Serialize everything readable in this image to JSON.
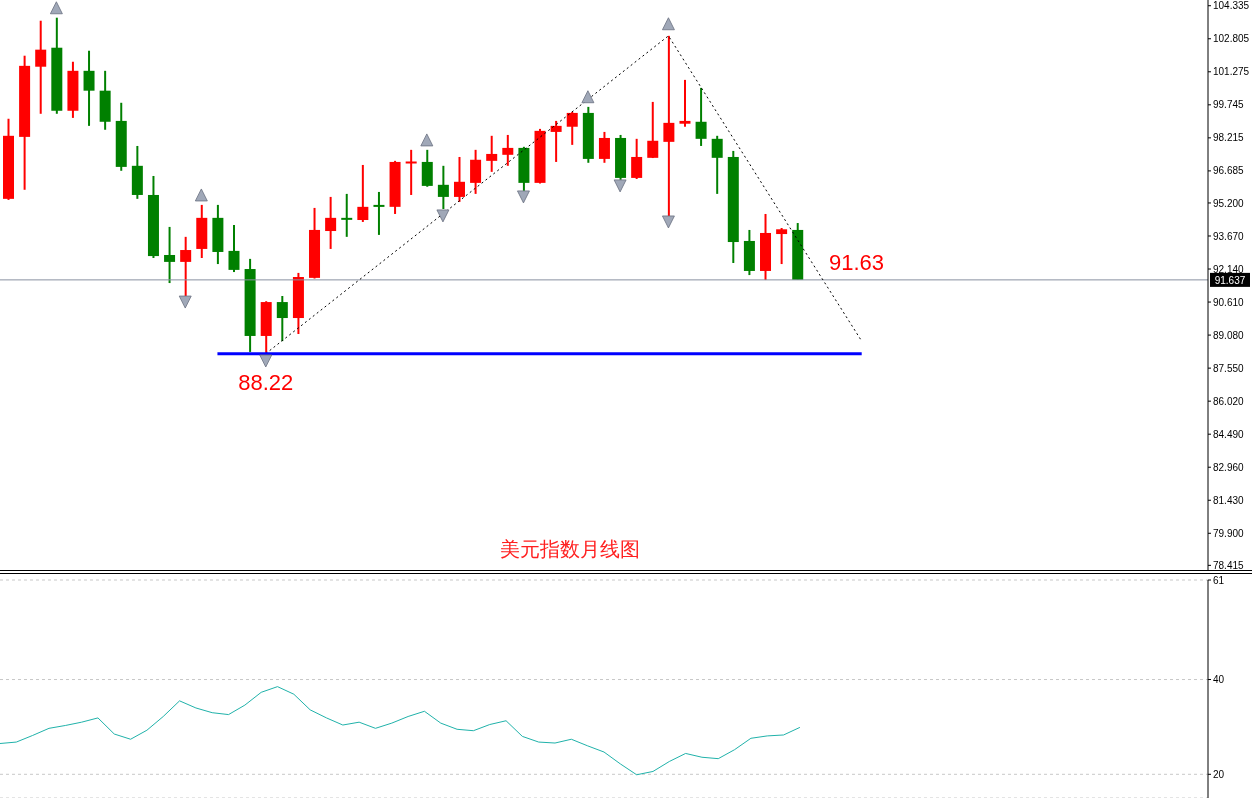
{
  "chart_data": [
    {
      "type": "candlestick",
      "title": "美元指数月线图",
      "categories": [
        null,
        null,
        null,
        null,
        null,
        null,
        null,
        null,
        null,
        null,
        null,
        null,
        null,
        null,
        null,
        null,
        null,
        null,
        null,
        null,
        null,
        null,
        null,
        null,
        null,
        null,
        null,
        null,
        null,
        null,
        null,
        null,
        null,
        null,
        null,
        null,
        null,
        null,
        null,
        null,
        null,
        null,
        null,
        null,
        null,
        null,
        null,
        null,
        null,
        null,
        null,
        null,
        null,
        null,
        null,
        null,
        null,
        null,
        null,
        null,
        null,
        null,
        null,
        null,
        null,
        null,
        null,
        null,
        null,
        null,
        null,
        null,
        null,
        null,
        null
      ],
      "ohlc": [
        [
          95.39,
          99.1,
          95.34,
          98.31
        ],
        [
          98.26,
          102.02,
          95.81,
          101.55
        ],
        [
          101.51,
          103.64,
          99.33,
          102.3
        ],
        [
          102.39,
          103.78,
          99.33,
          99.47
        ],
        [
          99.47,
          101.74,
          99.14,
          101.32
        ],
        [
          101.32,
          102.25,
          98.77,
          100.4
        ],
        [
          100.4,
          101.32,
          98.59,
          98.96
        ],
        [
          99.0,
          99.84,
          96.69,
          96.87
        ],
        [
          96.92,
          97.84,
          95.39,
          95.57
        ],
        [
          95.57,
          96.45,
          92.65,
          92.74
        ],
        [
          92.79,
          94.09,
          91.49,
          92.47
        ],
        [
          92.47,
          93.63,
          90.89,
          93.02
        ],
        [
          93.07,
          95.11,
          92.65,
          94.51
        ],
        [
          94.51,
          95.11,
          92.37,
          92.93
        ],
        [
          92.98,
          94.18,
          92.0,
          92.1
        ],
        [
          92.14,
          92.61,
          88.3,
          89.04
        ],
        [
          89.04,
          90.65,
          88.22,
          90.61
        ],
        [
          90.61,
          90.89,
          88.8,
          89.87
        ],
        [
          89.87,
          91.96,
          89.13,
          91.77
        ],
        [
          91.73,
          94.97,
          91.7,
          93.95
        ],
        [
          93.9,
          95.48,
          93.07,
          94.51
        ],
        [
          94.51,
          95.62,
          93.63,
          94.46
        ],
        [
          94.41,
          96.96,
          94.32,
          95.02
        ],
        [
          95.11,
          95.71,
          93.72,
          95.04
        ],
        [
          95.02,
          97.15,
          94.69,
          97.1
        ],
        [
          97.06,
          97.66,
          95.57,
          97.12
        ],
        [
          97.1,
          97.66,
          95.95,
          95.99
        ],
        [
          96.04,
          96.92,
          94.92,
          95.48
        ],
        [
          95.48,
          97.33,
          95.25,
          96.18
        ],
        [
          96.13,
          97.66,
          95.62,
          97.2
        ],
        [
          97.15,
          98.31,
          96.64,
          97.47
        ],
        [
          97.43,
          98.35,
          96.92,
          97.75
        ],
        [
          97.75,
          97.8,
          95.76,
          96.13
        ],
        [
          96.13,
          98.63,
          96.1,
          98.54
        ],
        [
          98.49,
          99.0,
          97.1,
          98.77
        ],
        [
          98.73,
          99.42,
          97.89,
          99.37
        ],
        [
          99.37,
          99.65,
          97.06,
          97.24
        ],
        [
          97.24,
          98.49,
          97.06,
          98.21
        ],
        [
          98.21,
          98.35,
          96.27,
          96.36
        ],
        [
          96.36,
          98.17,
          96.31,
          97.33
        ],
        [
          97.29,
          99.88,
          97.28,
          98.08
        ],
        [
          98.03,
          102.94,
          94.55,
          98.91
        ],
        [
          98.87,
          100.9,
          98.73,
          99.0
        ],
        [
          98.96,
          100.53,
          97.84,
          98.17
        ],
        [
          98.17,
          98.31,
          95.62,
          97.29
        ],
        [
          97.33,
          97.61,
          92.42,
          93.39
        ],
        [
          93.44,
          93.95,
          91.86,
          92.05
        ],
        [
          92.05,
          94.69,
          91.63,
          93.81
        ],
        [
          93.76,
          94.04,
          92.37,
          93.98
        ],
        [
          93.95,
          94.27,
          91.637,
          91.637
        ],
        null,
        null,
        null,
        null,
        null,
        null,
        null,
        null,
        null,
        null,
        null,
        null,
        null,
        null,
        null,
        null,
        null,
        null,
        null,
        null,
        null,
        null,
        null,
        null,
        null
      ],
      "colors": [
        "#ff0000",
        "#ff0000",
        "#ff0000",
        "#008000",
        "#ff0000",
        "#008000",
        "#008000",
        "#008000",
        "#008000",
        "#008000",
        "#008000",
        "#ff0000",
        "#ff0000",
        "#008000",
        "#008000",
        "#008000",
        "#ff0000",
        "#008000",
        "#ff0000",
        "#ff0000",
        "#ff0000",
        "#008000",
        "#ff0000",
        "#008000",
        "#ff0000",
        "#ff0000",
        "#008000",
        "#008000",
        "#ff0000",
        "#ff0000",
        "#ff0000",
        "#ff0000",
        "#008000",
        "#ff0000",
        "#ff0000",
        "#ff0000",
        "#008000",
        "#ff0000",
        "#008000",
        "#ff0000",
        "#ff0000",
        "#ff0000",
        "#ff0000",
        "#008000",
        "#008000",
        "#008000",
        "#008000",
        "#ff0000",
        "#ff0000",
        "#008000",
        null,
        null,
        null,
        null,
        null,
        null,
        null,
        null,
        null,
        null,
        null,
        null,
        null,
        null,
        null,
        null,
        null,
        null,
        null,
        null,
        null,
        null,
        null,
        null,
        null
      ],
      "series": [
        {
          "type": "line",
          "values": [
            null,
            null,
            null,
            null,
            null,
            null,
            null,
            null,
            null,
            null,
            null,
            null,
            null,
            null,
            null,
            null,
            88.22,
            null,
            null,
            null,
            null,
            null,
            null,
            null,
            null,
            null,
            null,
            null,
            null,
            null,
            null,
            null,
            null,
            null,
            null,
            null,
            null,
            null,
            null,
            null,
            null,
            102.94,
            null,
            null,
            null,
            null,
            null,
            null,
            null,
            null,
            null,
            null,
            null,
            88.8,
            null,
            null,
            null,
            null,
            null,
            null,
            null,
            null,
            null,
            null,
            null,
            null,
            null,
            null,
            null,
            null,
            null,
            null,
            null,
            null,
            null
          ],
          "color": "#000000",
          "line_style": "dotted"
        },
        {
          "type": "line",
          "name": "88.22",
          "values": [
            null,
            null,
            null,
            null,
            null,
            null,
            null,
            null,
            null,
            null,
            null,
            null,
            null,
            88.22,
            88.22,
            88.22,
            88.22,
            88.22,
            88.22,
            88.22,
            88.22,
            88.22,
            88.22,
            88.22,
            88.22,
            88.22,
            88.22,
            88.22,
            88.22,
            88.22,
            88.22,
            88.22,
            88.22,
            88.22,
            88.22,
            88.22,
            88.22,
            88.22,
            88.22,
            88.22,
            88.22,
            88.22,
            88.22,
            88.22,
            88.22,
            88.22,
            88.22,
            88.22,
            88.22,
            88.22,
            88.22,
            88.22,
            88.22,
            88.22,
            null,
            null,
            null,
            null,
            null,
            null,
            null,
            null,
            null,
            null,
            null,
            null,
            null,
            null,
            null,
            null,
            null,
            null,
            null,
            null,
            null
          ],
          "color": "#0000ff",
          "line_style": "solid"
        },
        {
          "type": "scatter",
          "values": [
            null,
            null,
            null,
            104.24,
            null,
            null,
            null,
            null,
            null,
            null,
            null,
            null,
            95.57,
            null,
            null,
            null,
            null,
            null,
            null,
            null,
            null,
            null,
            null,
            null,
            null,
            null,
            98.12,
            null,
            null,
            null,
            null,
            null,
            null,
            null,
            null,
            null,
            100.12,
            null,
            null,
            null,
            null,
            103.5,
            null,
            null,
            null,
            null,
            null,
            null,
            null,
            null,
            null,
            null,
            null,
            null,
            null,
            null,
            null,
            null,
            null,
            null,
            null,
            null,
            null,
            null,
            null,
            null,
            null,
            null,
            null,
            null,
            null,
            null,
            null,
            null,
            null
          ],
          "color": "#a0a8b8",
          "marker": "triangle"
        },
        {
          "type": "scatter",
          "values": [
            null,
            null,
            null,
            null,
            null,
            null,
            null,
            null,
            null,
            null,
            null,
            90.61,
            null,
            null,
            null,
            null,
            87.88,
            null,
            null,
            null,
            null,
            null,
            null,
            null,
            null,
            null,
            null,
            94.6,
            null,
            null,
            null,
            null,
            95.48,
            null,
            null,
            null,
            null,
            null,
            95.99,
            null,
            null,
            94.32,
            null,
            null,
            null,
            null,
            null,
            null,
            null,
            null,
            null,
            null,
            null,
            null,
            null,
            null,
            null,
            null,
            null,
            null,
            null,
            null,
            null,
            null,
            null,
            null,
            null,
            null,
            null,
            null,
            null,
            null,
            null,
            null,
            null
          ],
          "color": "#a0a8b8",
          "marker": "triangle"
        }
      ],
      "ref_lines": [
        {
          "axis": "y",
          "value": 91.637,
          "label": "91.637",
          "color": "#8890a0"
        }
      ],
      "annotations": [
        "91.63"
      ],
      "ylim": [
        78.2,
        104.6
      ],
      "yticks": [
        104.335,
        102.805,
        101.275,
        99.745,
        98.215,
        96.685,
        {
          "value": 95.2,
          "label": "95.200"
        },
        {
          "value": 93.67,
          "label": "93.670"
        },
        {
          "value": 92.14,
          "label": "92.140"
        },
        {
          "value": 90.61,
          "label": "90.610"
        },
        {
          "value": 89.08,
          "label": "89.080"
        },
        {
          "value": 87.55,
          "label": "87.550"
        },
        {
          "value": 86.02,
          "label": "86.020"
        },
        {
          "value": 84.49,
          "label": "84.490"
        },
        {
          "value": 82.96,
          "label": "82.960"
        },
        {
          "value": 81.43,
          "label": "81.430"
        },
        {
          "value": 79.9,
          "label": "79.900"
        },
        78.415
      ],
      "tick_labels": "y",
      "grid": false
    },
    {
      "type": "line",
      "categories": [
        null,
        null,
        null,
        null,
        null,
        null,
        null,
        null,
        null,
        null,
        null,
        null,
        null,
        null,
        null,
        null,
        null,
        null,
        null,
        null,
        null,
        null,
        null,
        null,
        null,
        null,
        null,
        null,
        null,
        null,
        null,
        null,
        null,
        null,
        null,
        null,
        null,
        null,
        null,
        null,
        null,
        null,
        null,
        null,
        null,
        null,
        null,
        null,
        null,
        null,
        null,
        null,
        null,
        null,
        null,
        null,
        null,
        null,
        null,
        null,
        null,
        null,
        null,
        null,
        null,
        null,
        null,
        null,
        null,
        null,
        null,
        null,
        null,
        null,
        null
      ],
      "values": [
        26.5,
        26.8,
        28.2,
        29.7,
        30.3,
        31.0,
        31.9,
        28.5,
        27.4,
        29.3,
        32.2,
        35.5,
        34.0,
        33.0,
        32.6,
        34.6,
        37.3,
        38.5,
        36.9,
        33.6,
        31.9,
        30.4,
        31.0,
        29.7,
        30.8,
        32.2,
        33.3,
        30.8,
        29.5,
        29.2,
        30.5,
        31.3,
        28.0,
        26.8,
        26.6,
        27.4,
        26.0,
        24.7,
        22.2,
        19.9,
        20.6,
        22.7,
        24.4,
        23.6,
        23.3,
        25.2,
        27.6,
        28.1,
        28.3,
        29.9,
        null,
        null,
        null,
        null,
        null,
        null,
        null,
        null,
        null,
        null,
        null,
        null,
        null,
        null,
        null,
        null,
        null,
        null,
        null,
        null,
        null,
        null,
        null,
        null,
        null
      ],
      "color": "#20b2aa",
      "ylim": [
        15,
        61
      ],
      "yticks": [
        20,
        40,
        61
      ],
      "tick_labels": "y",
      "grid": "y"
    }
  ]
}
